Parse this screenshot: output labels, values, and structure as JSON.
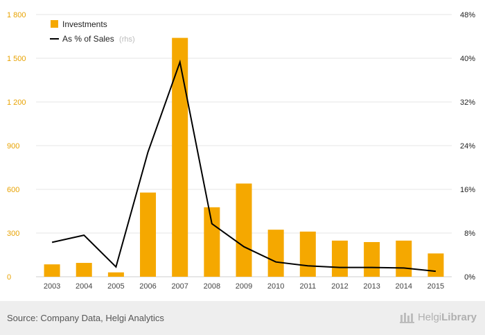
{
  "chart_data": {
    "type": "bar",
    "categories": [
      "2003",
      "2004",
      "2005",
      "2006",
      "2007",
      "2008",
      "2009",
      "2010",
      "2011",
      "2012",
      "2013",
      "2014",
      "2015"
    ],
    "series": [
      {
        "name": "Investments",
        "type": "bar",
        "axis": "left",
        "color": "#f5a800",
        "values": [
          85,
          95,
          30,
          578,
          1640,
          477,
          640,
          323,
          310,
          248,
          238,
          248,
          160
        ]
      },
      {
        "name": "As % of Sales",
        "axis_note": "(rhs)",
        "type": "line",
        "axis": "right",
        "color": "#000000",
        "values": [
          6.3,
          7.6,
          1.8,
          22.8,
          39.3,
          9.7,
          5.5,
          2.7,
          2.0,
          1.7,
          1.7,
          1.6,
          1.0
        ]
      }
    ],
    "left_axis": {
      "ylim": [
        0,
        1800
      ],
      "ticks": [
        0,
        300,
        600,
        900,
        1200,
        1500,
        1800
      ],
      "tick_labels": [
        "0",
        "300",
        "600",
        "900",
        "1 200",
        "1 500",
        "1 800"
      ]
    },
    "right_axis": {
      "ylim": [
        0,
        48
      ],
      "ticks": [
        0,
        8,
        16,
        24,
        32,
        40,
        48
      ],
      "tick_labels": [
        "0%",
        "8%",
        "16%",
        "24%",
        "32%",
        "40%",
        "48%"
      ]
    },
    "grid": true,
    "legend_position": "top-left"
  },
  "legend": {
    "investments": "Investments",
    "sales_pct": "As % of Sales",
    "sales_pct_note": "(rhs)"
  },
  "footer": {
    "source": "Source: Company Data, Helgi Analytics",
    "brand_light": "Helgi",
    "brand_bold": "Library"
  }
}
